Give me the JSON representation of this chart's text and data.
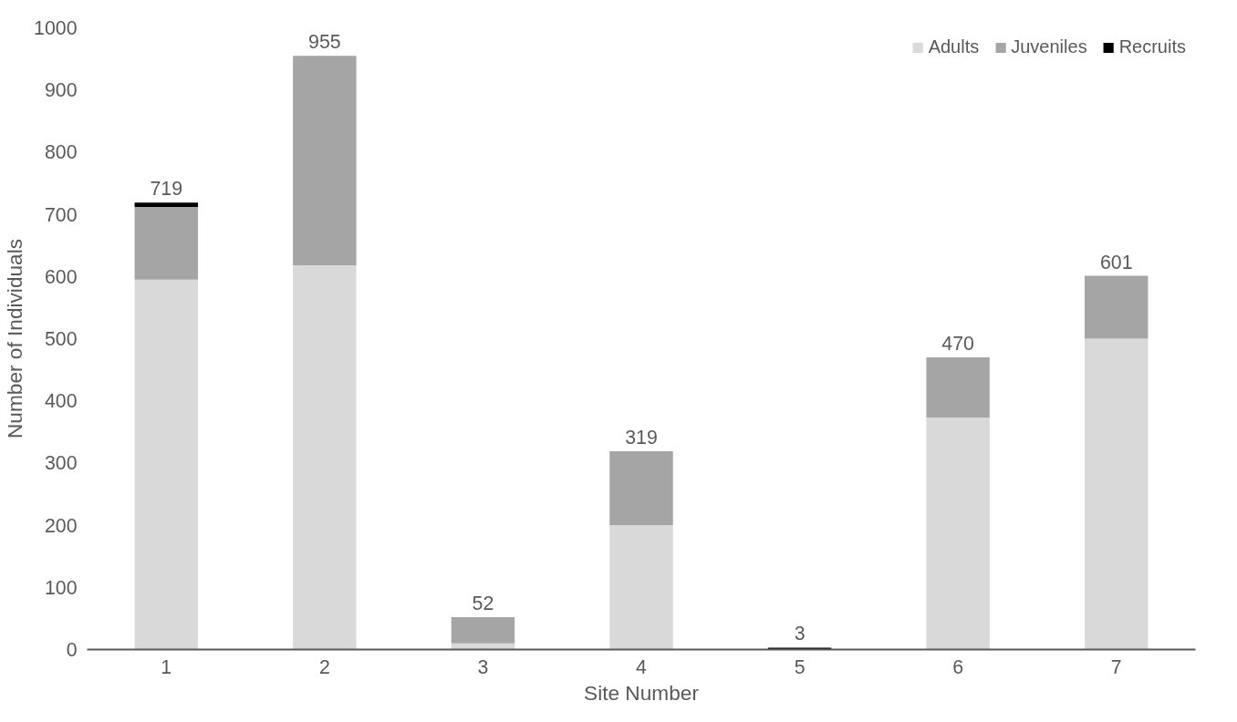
{
  "chart_data": {
    "type": "bar",
    "stacked": true,
    "xlabel": "Site Number",
    "ylabel": "Number of Individuals",
    "categories": [
      "1",
      "2",
      "3",
      "4",
      "5",
      "6",
      "7"
    ],
    "series": [
      {
        "name": "Adults",
        "color": "#d9d9d9",
        "values": [
          595,
          618,
          10,
          200,
          0,
          373,
          500
        ]
      },
      {
        "name": "Juveniles",
        "color": "#a5a5a5",
        "values": [
          117,
          337,
          42,
          119,
          0,
          97,
          101
        ]
      },
      {
        "name": "Recruits",
        "color": "#000000",
        "values": [
          7,
          0,
          0,
          0,
          3,
          0,
          0
        ]
      }
    ],
    "totals": [
      "719",
      "955",
      "52",
      "319",
      "3",
      "470",
      "601"
    ],
    "ylim": [
      0,
      1000
    ],
    "yticks": [
      0,
      100,
      200,
      300,
      400,
      500,
      600,
      700,
      800,
      900,
      1000
    ],
    "grid": false,
    "legend": "top right"
  }
}
